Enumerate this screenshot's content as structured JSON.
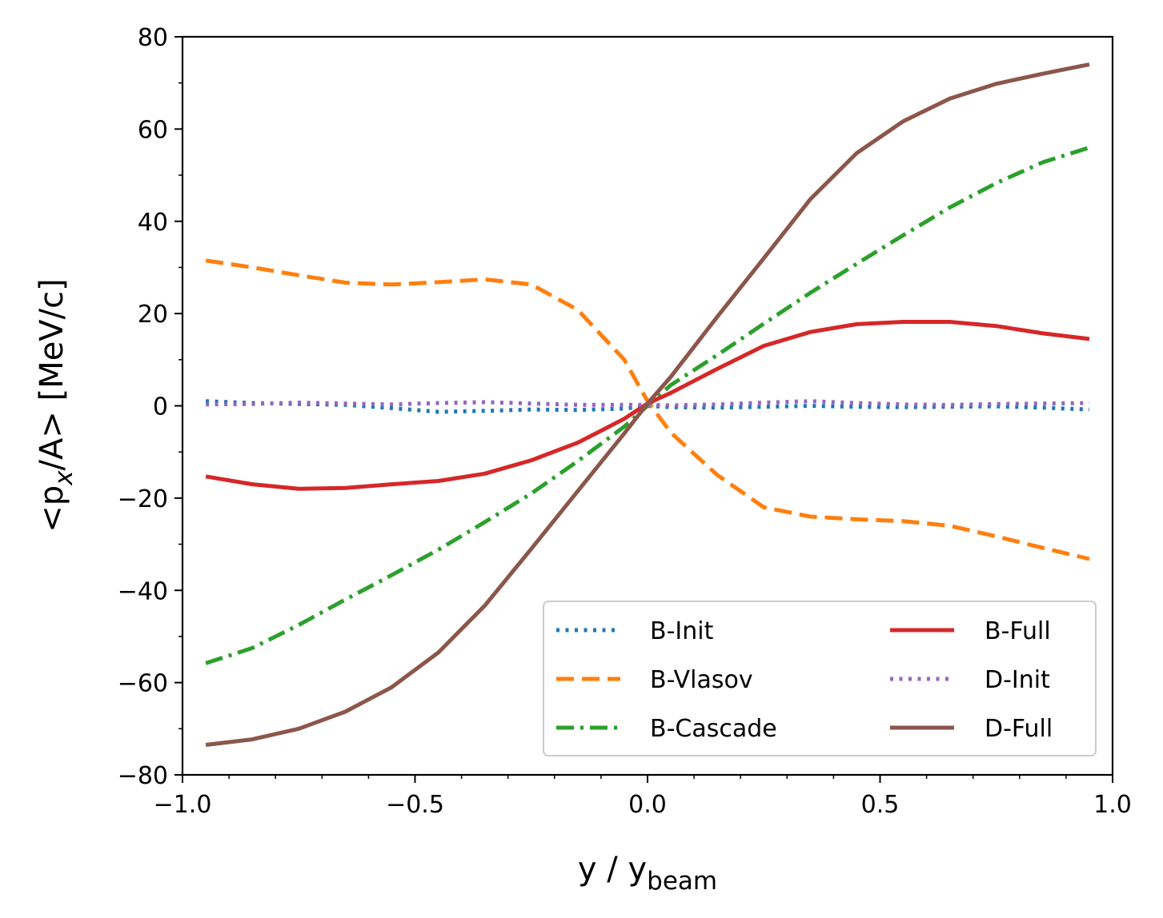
{
  "chart_data": {
    "type": "line",
    "title": "",
    "xlabel_main": "y / y",
    "xlabel_sub": "beam",
    "ylabel_pre": "<p",
    "ylabel_sub": "x",
    "ylabel_post": "/A> [MeV/c]",
    "xlim": [
      -1.0,
      1.0
    ],
    "ylim": [
      -80,
      80
    ],
    "xticks": [
      -1.0,
      -0.5,
      0.0,
      0.5,
      1.0
    ],
    "xtick_labels": [
      "−1.0",
      "−0.5",
      "0.0",
      "0.5",
      "1.0"
    ],
    "yticks": [
      -80,
      -60,
      -40,
      -20,
      0,
      20,
      40,
      60,
      80
    ],
    "ytick_labels": [
      "−80",
      "−60",
      "−40",
      "−20",
      "0",
      "20",
      "40",
      "60",
      "80"
    ],
    "legend_position": "lower-right",
    "x": [
      -0.95,
      -0.85,
      -0.75,
      -0.65,
      -0.55,
      -0.45,
      -0.35,
      -0.25,
      -0.15,
      -0.05,
      0.0,
      0.05,
      0.15,
      0.25,
      0.35,
      0.45,
      0.55,
      0.65,
      0.75,
      0.85,
      0.95
    ],
    "series": [
      {
        "name": "B-Init",
        "color": "#1f77b4",
        "style": "dotted",
        "values": [
          1.0,
          0.6,
          0.4,
          0.2,
          -0.5,
          -1.3,
          -1.1,
          -0.8,
          -0.9,
          -0.6,
          0.0,
          -0.3,
          -0.4,
          -0.2,
          0.0,
          -0.2,
          -0.3,
          -0.2,
          -0.1,
          -0.4,
          -0.8
        ]
      },
      {
        "name": "B-Vlasov",
        "color": "#ff7f0e",
        "style": "dashed",
        "values": [
          31.5,
          30.0,
          28.3,
          26.7,
          26.3,
          26.8,
          27.4,
          26.3,
          20.8,
          10.0,
          1.0,
          -5.8,
          -15.0,
          -22.0,
          -24.0,
          -24.6,
          -25.0,
          -26.0,
          -28.3,
          -30.8,
          -33.2
        ]
      },
      {
        "name": "B-Cascade",
        "color": "#2ca02c",
        "style": "dashdot",
        "values": [
          -55.8,
          -52.5,
          -47.5,
          -42.0,
          -36.7,
          -31.2,
          -25.2,
          -19.0,
          -12.0,
          -4.5,
          0.0,
          4.5,
          11.0,
          17.8,
          24.5,
          30.8,
          37.0,
          43.0,
          48.3,
          52.8,
          56.0
        ]
      },
      {
        "name": "B-Full",
        "color": "#d62728",
        "style": "solid",
        "values": [
          -15.3,
          -17.0,
          -18.0,
          -17.8,
          -17.0,
          -16.3,
          -14.7,
          -11.8,
          -8.0,
          -2.8,
          0.5,
          2.8,
          8.0,
          13.0,
          16.0,
          17.7,
          18.2,
          18.2,
          17.3,
          15.7,
          14.5
        ]
      },
      {
        "name": "D-Init",
        "color": "#9467bd",
        "style": "dotted",
        "values": [
          0.3,
          0.4,
          0.7,
          0.5,
          0.3,
          0.6,
          0.8,
          0.5,
          0.2,
          0.2,
          0.2,
          0.1,
          0.3,
          0.7,
          1.0,
          0.6,
          0.3,
          0.2,
          0.4,
          0.5,
          0.6
        ]
      },
      {
        "name": "D-Full",
        "color": "#8c564b",
        "style": "solid",
        "values": [
          -73.5,
          -72.3,
          -70.0,
          -66.3,
          -61.0,
          -53.5,
          -43.3,
          -31.0,
          -18.5,
          -6.0,
          0.5,
          6.3,
          19.3,
          32.0,
          44.8,
          54.8,
          61.7,
          66.6,
          69.8,
          72.0,
          74.0
        ]
      }
    ]
  }
}
